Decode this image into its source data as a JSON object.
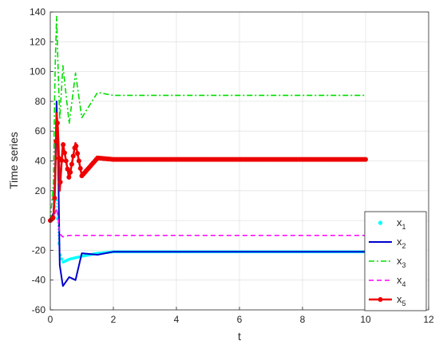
{
  "chart_data": {
    "type": "line",
    "title": "",
    "xlabel": "t",
    "ylabel": "Time series",
    "xlim": [
      0,
      12
    ],
    "ylim": [
      -60,
      140
    ],
    "xticks": [
      0,
      2,
      4,
      6,
      8,
      10,
      12
    ],
    "yticks": [
      -60,
      -40,
      -20,
      0,
      20,
      40,
      60,
      80,
      100,
      120,
      140
    ],
    "grid": true,
    "legend_position": "bottom-right",
    "series": [
      {
        "name": "x1",
        "legend_base": "x",
        "legend_sub": "1",
        "color": "#00ffff",
        "style": "dotted-markers",
        "t_end": 10,
        "x": [
          0,
          0.1,
          0.15,
          0.2,
          0.25,
          0.3,
          0.4,
          0.6,
          0.8,
          1.0,
          1.5,
          2,
          3,
          4,
          5,
          6,
          8,
          10
        ],
        "values": [
          0,
          2,
          12,
          15,
          -10,
          -22,
          -28,
          -26,
          -25,
          -24,
          -22,
          -21,
          -21,
          -21,
          -21,
          -21,
          -21,
          -21
        ]
      },
      {
        "name": "x2",
        "legend_base": "x",
        "legend_sub": "2",
        "color": "#0000cc",
        "style": "solid",
        "t_end": 10,
        "x": [
          0,
          0.1,
          0.15,
          0.2,
          0.25,
          0.3,
          0.4,
          0.6,
          0.8,
          1.0,
          1.5,
          2,
          3,
          4,
          5,
          6,
          8,
          10
        ],
        "values": [
          0,
          5,
          30,
          80,
          40,
          -30,
          -44,
          -38,
          -40,
          -22,
          -23,
          -21,
          -21,
          -21,
          -21,
          -21,
          -21,
          -21
        ]
      },
      {
        "name": "x3",
        "legend_base": "x",
        "legend_sub": "3",
        "color": "#00dd00",
        "style": "dash-dot",
        "t_end": 10,
        "x": [
          0,
          0.1,
          0.15,
          0.2,
          0.25,
          0.3,
          0.4,
          0.6,
          0.8,
          1.0,
          1.5,
          2,
          3,
          4,
          5,
          6,
          8,
          10
        ],
        "values": [
          0,
          25,
          100,
          137,
          100,
          68,
          104,
          65,
          99,
          69,
          86,
          84,
          84,
          84,
          84,
          84,
          84,
          84
        ]
      },
      {
        "name": "x4",
        "legend_base": "x",
        "legend_sub": "4",
        "color": "#ff00ff",
        "style": "dashed",
        "t_end": 10,
        "x": [
          0,
          0.1,
          0.15,
          0.2,
          0.25,
          0.3,
          0.4,
          0.6,
          0.8,
          1.0,
          1.5,
          2,
          3,
          4,
          5,
          6,
          8,
          10
        ],
        "values": [
          0,
          2,
          5,
          8,
          2,
          -9,
          -11,
          -10,
          -10,
          -10,
          -10,
          -10,
          -10,
          -10,
          -10,
          -10,
          -10,
          -10
        ]
      },
      {
        "name": "x5",
        "legend_base": "x",
        "legend_sub": "5",
        "color": "#ee0000",
        "style": "solid-markers",
        "t_end": 10,
        "x": [
          0,
          0.1,
          0.15,
          0.2,
          0.25,
          0.3,
          0.4,
          0.6,
          0.8,
          1.0,
          1.5,
          2,
          3,
          4,
          5,
          6,
          8,
          10
        ],
        "values": [
          0,
          2,
          20,
          72,
          60,
          20,
          52,
          28,
          52,
          30,
          42,
          41,
          41,
          41,
          41,
          41,
          41,
          41
        ]
      }
    ]
  }
}
